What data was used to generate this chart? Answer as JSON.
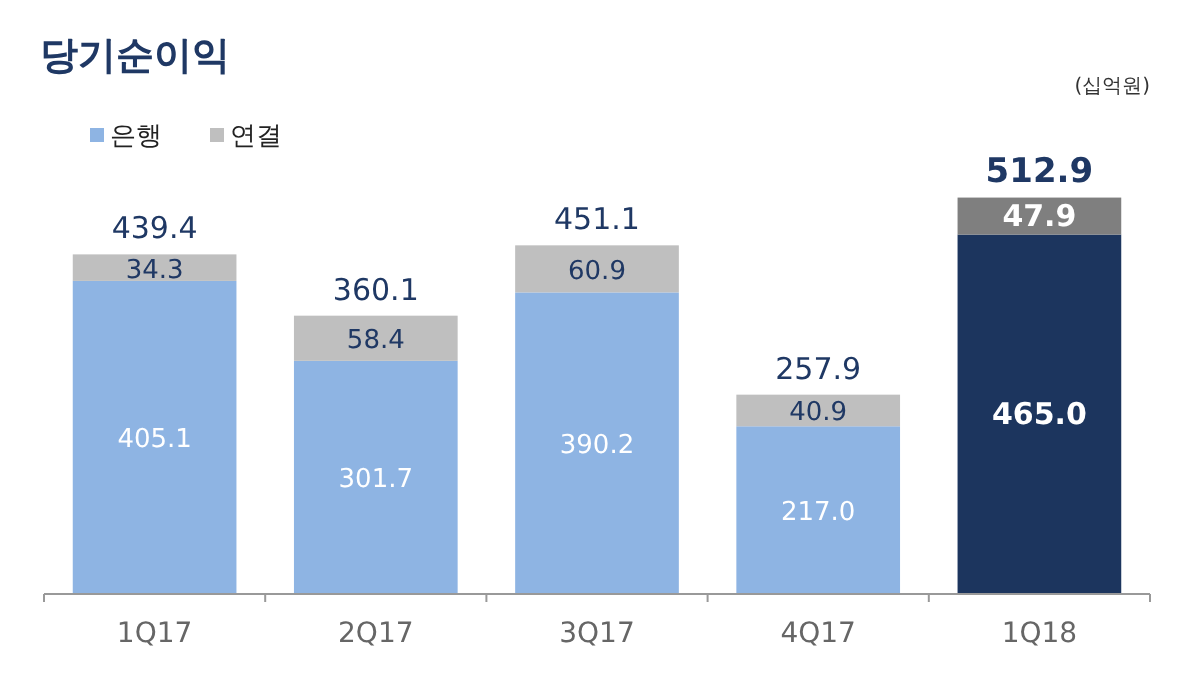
{
  "chart_data": {
    "type": "bar",
    "title": "당기순이익",
    "annotations": [
      "(십억원)"
    ],
    "categories": [
      "1Q17",
      "2Q17",
      "3Q17",
      "4Q17",
      "1Q18"
    ],
    "stacked": true,
    "data_labels": true,
    "legend": "top left",
    "series": [
      {
        "name": "은행",
        "color": "#8eb4e3",
        "colors": [
          "#8eb4e3",
          "#8eb4e3",
          "#8eb4e3",
          "#8eb4e3",
          "#1c355e"
        ],
        "values": [
          405.1,
          301.7,
          390.2,
          217.0,
          465.0
        ],
        "value_labels": [
          "405.1",
          "301.7",
          "390.2",
          "217.0",
          "465.0"
        ]
      },
      {
        "name": "연결",
        "color": "#bfbfbf",
        "colors": [
          "#bfbfbf",
          "#bfbfbf",
          "#bfbfbf",
          "#bfbfbf",
          "#7f7f7f"
        ],
        "values": [
          34.3,
          58.4,
          60.9,
          40.9,
          47.9
        ],
        "value_labels": [
          "34.3",
          "58.4",
          "60.9",
          "40.9",
          "47.9"
        ]
      }
    ],
    "totals": [
      "439.4",
      "360.1",
      "451.1",
      "257.9",
      "512.9"
    ]
  }
}
